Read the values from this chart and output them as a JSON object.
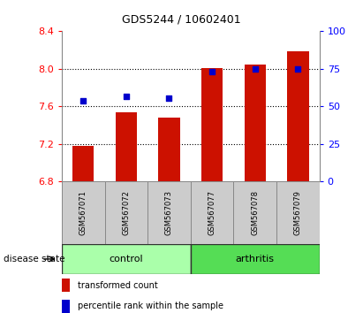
{
  "title": "GDS5244 / 10602401",
  "samples": [
    "GSM567071",
    "GSM567072",
    "GSM567073",
    "GSM567077",
    "GSM567078",
    "GSM567079"
  ],
  "bar_values": [
    7.18,
    7.54,
    7.48,
    8.01,
    8.05,
    8.19
  ],
  "dot_values": [
    7.66,
    7.71,
    7.69,
    7.97,
    8.0,
    8.0
  ],
  "ylim_left": [
    6.8,
    8.4
  ],
  "ylim_right": [
    0,
    100
  ],
  "yticks_left": [
    6.8,
    7.2,
    7.6,
    8.0,
    8.4
  ],
  "yticks_right": [
    0,
    25,
    50,
    75,
    100
  ],
  "bar_bottom": 6.8,
  "bar_color": "#cc1100",
  "dot_color": "#0000cc",
  "control_color": "#aaffaa",
  "arthritis_color": "#55dd55",
  "tick_bg_color": "#cccccc",
  "legend_bar_label": "transformed count",
  "legend_dot_label": "percentile rank within the sample",
  "disease_state_label": "disease state",
  "control_label": "control",
  "arthritis_label": "arthritis",
  "title_fontsize": 9,
  "tick_label_fontsize": 6,
  "group_label_fontsize": 8,
  "legend_fontsize": 7,
  "disease_state_fontsize": 7.5
}
